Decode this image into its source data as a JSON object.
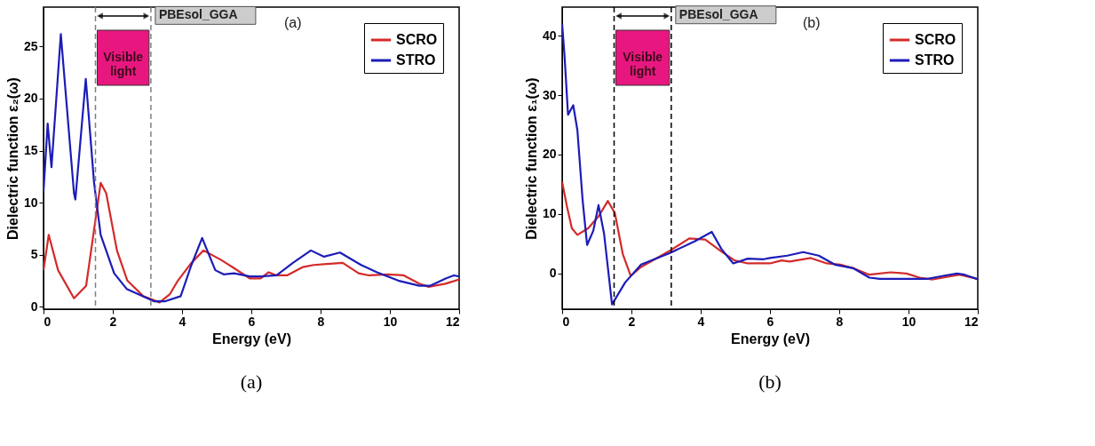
{
  "chart_data": [
    {
      "type": "line",
      "xlabel": "Energy (eV)",
      "ylabel": "Dielectric function ε₂(ω)",
      "xlim": [
        0,
        12
      ],
      "ylim": [
        -0.25,
        28.8
      ],
      "xticks": [
        0,
        2,
        4,
        6,
        8,
        10,
        12
      ],
      "yticks": [
        0,
        5,
        10,
        15,
        20,
        25
      ],
      "grid": false,
      "legend": "top right",
      "line_style": "solid",
      "series": [
        {
          "name": "SCRO",
          "color": "#d42a2a",
          "x": [
            0,
            0.15,
            0.42,
            0.88,
            1.23,
            1.46,
            1.65,
            1.81,
            2.12,
            2.42,
            2.88,
            3.35,
            3.65,
            3.88,
            4.27,
            4.62,
            5.12,
            5.5,
            5.96,
            6.27,
            6.5,
            6.73,
            7.03,
            7.49,
            7.8,
            8.18,
            8.64,
            9.1,
            9.4,
            9.94,
            10.4,
            10.85,
            11.12,
            11.6,
            12
          ],
          "values": [
            3.5,
            6.9,
            3.5,
            0.8,
            2.0,
            7.4,
            11.9,
            10.9,
            5.4,
            2.5,
            1.0,
            0.4,
            1.2,
            2.5,
            4.2,
            5.4,
            4.5,
            3.7,
            2.7,
            2.7,
            3.3,
            3.0,
            3.0,
            3.8,
            4.0,
            4.1,
            4.2,
            3.2,
            3.0,
            3.1,
            3.0,
            2.2,
            1.9,
            2.2,
            2.6
          ]
        },
        {
          "name": "STRO",
          "color": "#1c1cb8",
          "x": [
            0,
            0.12,
            0.23,
            0.5,
            0.88,
            0.92,
            1.22,
            1.46,
            1.65,
            2.04,
            2.4,
            3.2,
            3.5,
            3.96,
            4.27,
            4.58,
            4.96,
            5.2,
            5.5,
            5.96,
            6.27,
            6.73,
            7.2,
            7.72,
            8.1,
            8.56,
            9.17,
            9.63,
            10.24,
            10.85,
            11.16,
            11.61,
            11.85,
            12
          ],
          "values": [
            11.1,
            17.6,
            13.4,
            26.2,
            10.9,
            10.3,
            21.9,
            11.9,
            6.9,
            3.2,
            1.7,
            0.5,
            0.5,
            1.0,
            4.0,
            6.6,
            3.5,
            3.1,
            3.2,
            2.9,
            2.9,
            3.0,
            4.2,
            5.4,
            4.8,
            5.2,
            4.0,
            3.3,
            2.5,
            2.0,
            2.0,
            2.7,
            3.0,
            2.9
          ]
        }
      ],
      "ref_lines": [
        {
          "axis": "x",
          "value": 1.5,
          "color": "#808080",
          "line_style": "dashed"
        },
        {
          "axis": "x",
          "value": 3.1,
          "color": "#808080",
          "line_style": "dashed"
        }
      ],
      "annotations": [
        "Visible light",
        {
          "text": "PBEsol_GGA",
          "x": 3.1,
          "y": 28
        },
        "(a)",
        "(a)"
      ]
    },
    {
      "type": "line",
      "xlabel": "Energy (eV)",
      "ylabel": "Dielectric function ε₁(ω)",
      "xlim": [
        0,
        12
      ],
      "ylim": [
        -6,
        44.8
      ],
      "xticks": [
        0,
        2,
        4,
        6,
        8,
        10,
        12
      ],
      "yticks": [
        0,
        10,
        20,
        30,
        40
      ],
      "grid": false,
      "legend": "top right",
      "line_style": "solid",
      "series": [
        {
          "name": "SCRO",
          "color": "#d42a2a",
          "x": [
            0,
            0.13,
            0.28,
            0.44,
            0.75,
            1.05,
            1.32,
            1.52,
            1.75,
            1.98,
            2.28,
            3.13,
            3.67,
            4.13,
            4.6,
            4.98,
            5.36,
            5.82,
            6.0,
            6.34,
            6.57,
            7.18,
            7.64,
            8.03,
            8.4,
            8.87,
            9.48,
            9.94,
            10.32,
            10.7,
            11.47,
            12
          ],
          "values": [
            15.4,
            11.5,
            7.6,
            6.5,
            7.6,
            9.6,
            12.2,
            10.2,
            3.3,
            -0.4,
            1.1,
            3.9,
            5.9,
            5.7,
            3.7,
            2.2,
            1.7,
            1.7,
            1.7,
            2.2,
            2.0,
            2.6,
            1.7,
            1.5,
            0.9,
            -0.2,
            0.2,
            0,
            -0.7,
            -1.0,
            -0.2,
            -0.9
          ]
        },
        {
          "name": "STRO",
          "color": "#1c1cb8",
          "x": [
            0,
            0.07,
            0.17,
            0.32,
            0.44,
            0.59,
            0.72,
            0.9,
            1.05,
            1.21,
            1.44,
            1.82,
            2.28,
            3.13,
            3.82,
            4.32,
            4.6,
            4.94,
            5.36,
            5.82,
            6.0,
            6.5,
            6.96,
            7.41,
            7.87,
            8.4,
            8.87,
            9.17,
            9.94,
            10.55,
            11.0,
            11.4,
            11.62,
            12
          ],
          "values": [
            42.0,
            36.5,
            26.7,
            28.3,
            24.1,
            12.4,
            4.8,
            7.2,
            11.5,
            6.7,
            -5.2,
            -1.5,
            1.5,
            3.5,
            5.4,
            7.0,
            4.1,
            1.7,
            2.5,
            2.4,
            2.6,
            3.0,
            3.6,
            3.0,
            1.5,
            0.9,
            -0.7,
            -0.9,
            -0.9,
            -0.9,
            -0.4,
            0,
            -0.2,
            -1.0
          ]
        }
      ],
      "ref_lines": [
        {
          "axis": "x",
          "value": 1.5,
          "color": "#000000",
          "line_style": "dashed"
        },
        {
          "axis": "x",
          "value": 3.15,
          "color": "#000000",
          "line_style": "dashed"
        }
      ],
      "annotations": [
        "Visible light",
        {
          "text": "PBEsol_GGA",
          "x": 3.15,
          "y": 43.5
        },
        "(b)",
        "(b)"
      ]
    }
  ]
}
